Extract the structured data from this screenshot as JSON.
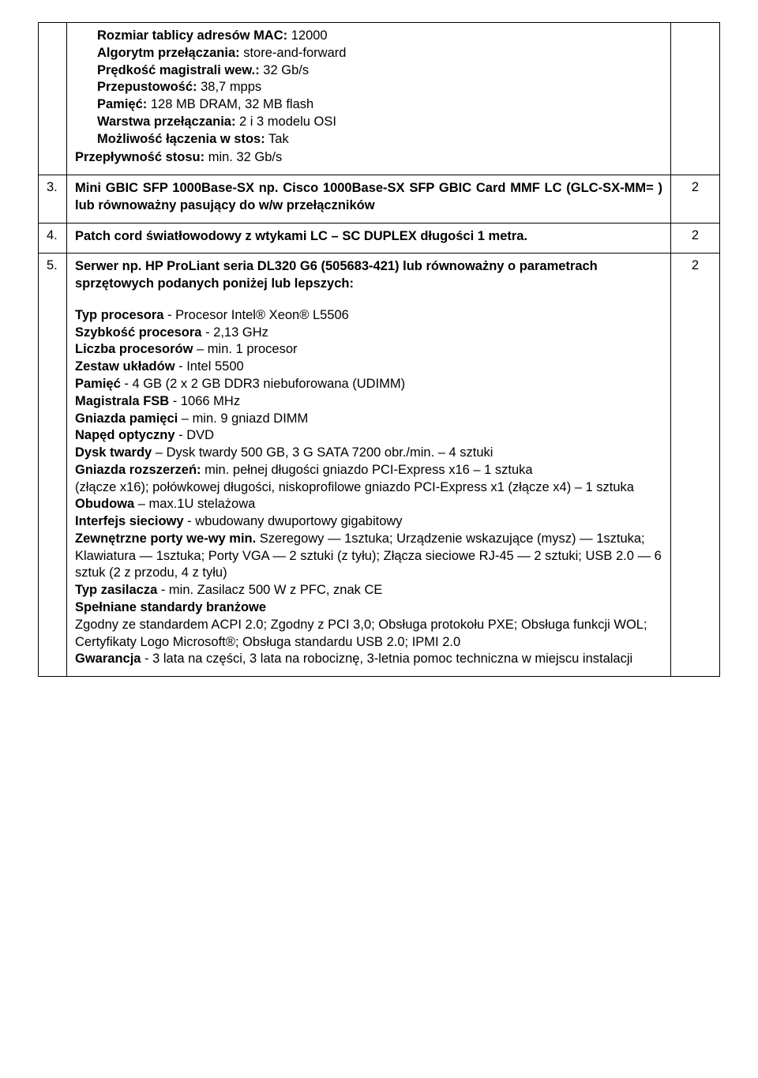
{
  "rows": [
    {
      "num": "",
      "qty": "",
      "lines": [
        {
          "label": "Rozmiar tablicy adresów MAC:",
          "value": "  12000"
        },
        {
          "label": "Algorytm przełączania:",
          "value": "  store-and-forward"
        },
        {
          "label": "Prędkość magistrali wew.:",
          "value": "  32 Gb/s"
        },
        {
          "label": "Przepustowość:",
          "value": "  38,7 mpps"
        },
        {
          "label": "Pamięć:",
          "value": "  128 MB DRAM, 32 MB flash"
        },
        {
          "label": "Warstwa przełączania:",
          "value": "  2 i 3 modelu OSI"
        },
        {
          "label": "Możliwość łączenia w stos:",
          "value": "  Tak"
        },
        {
          "label": "Przepływność stosu:",
          "value": " min. 32 Gb/s",
          "noindent": true
        }
      ]
    },
    {
      "num": "3.",
      "qty": "2",
      "text_parts": [
        {
          "t": "Mini GBIC SFP 1000Base-SX np. Cisco 1000Base-SX SFP GBIC Card MMF LC  (GLC-SX-MM= )  lub równoważny  pasujący do w/w przełączników",
          "bold": true
        }
      ]
    },
    {
      "num": "4.",
      "qty": "2",
      "text_parts": [
        {
          "t": "Patch cord światłowodowy z wtykami LC – SC DUPLEX długości 1 metra.",
          "bold": true
        }
      ]
    },
    {
      "num": "5.",
      "qty": "2",
      "intro_parts": [
        {
          "t": "Serwer np. HP ProLiant seria DL320 G6 (505683-421) lub równoważny o parametrach sprzętowych podanych poniżej lub lepszych:",
          "bold": true
        }
      ],
      "body": [
        {
          "b": "Typ procesora",
          "r": " - Procesor Intel® Xeon® L5506"
        },
        {
          "b": "Szybkość procesora",
          "r": " - 2,13 GHz"
        },
        {
          "b": "Liczba procesorów",
          "r": " – min. 1 procesor"
        },
        {
          "b": "Zestaw układów",
          "r": " - Intel 5500"
        },
        {
          "b": "Pamięć",
          "r": " - 4 GB (2 x 2 GB DDR3 niebuforowana (UDIMM)"
        },
        {
          "b": "Magistrala FSB",
          "r": " - 1066 MHz"
        },
        {
          "b": "Gniazda pamięci",
          "r": " – min. 9 gniazd DIMM"
        },
        {
          "b": "Napęd optyczny",
          "r": " - DVD"
        },
        {
          "b": "Dysk twardy",
          "r": " – Dysk twardy 500 GB, 3 G SATA 7200 obr./min.     – 4 sztuki"
        },
        {
          "b": "Gniazda rozszerzeń:",
          "r": " min. pełnej długości gniazdo PCI-Express x16 – 1 sztuka"
        },
        {
          "b": "",
          "r": "(złącze x16);  połówkowej długości, niskoprofilowe gniazdo PCI-Express x1 (złącze x4) – 1 sztuka"
        },
        {
          "b": "Obudowa",
          "r": " – max.1U stelażowa"
        },
        {
          "b": "Interfejs sieciowy",
          "r": " - wbudowany dwuportowy gigabitowy"
        },
        {
          "b": "Zewnętrzne porty we-wy min.",
          "r": " Szeregowy — 1sztuka; Urządzenie wskazujące (mysz) — 1sztuka; Klawiatura — 1sztuka; Porty VGA — 2 sztuki (z tyłu); Złącza sieciowe RJ-45 — 2 sztuki; USB 2.0 — 6 sztuk (2 z przodu, 4 z tyłu)"
        },
        {
          "b": "Typ zasilacza",
          "r": " - min. Zasilacz 500 W z PFC, znak CE"
        },
        {
          "b": "Spełniane standardy branżowe",
          "r": ""
        },
        {
          "b": "",
          "r": "Zgodny ze standardem ACPI 2.0; Zgodny z PCI 3,0; Obsługa protokołu PXE; Obsługa funkcji WOL; Certyfikaty Logo Microsoft®; Obsługa standardu USB 2.0; IPMI 2.0"
        },
        {
          "b": "Gwarancja",
          "r": " - 3 lata na części, 3 lata na robociznę, 3-letnia pomoc techniczna w miejscu instalacji"
        }
      ]
    }
  ]
}
